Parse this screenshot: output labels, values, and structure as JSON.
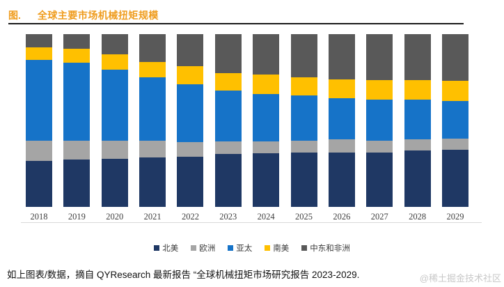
{
  "figure": {
    "label": "图.",
    "title": "全球主要市场机械扭矩规模",
    "title_color": "#EF9C1E"
  },
  "chart_data": {
    "type": "bar",
    "stacked": true,
    "percent": true,
    "title": "全球主要市场机械扭矩规模",
    "xlabel": "",
    "ylabel": "",
    "ylim": [
      0,
      100
    ],
    "grid": false,
    "legend_position": "bottom",
    "categories": [
      "2018",
      "2019",
      "2020",
      "2021",
      "2022",
      "2023",
      "2024",
      "2025",
      "2026",
      "2027",
      "2028",
      "2029"
    ],
    "series": [
      {
        "name": "北美",
        "color": "#1F3864",
        "values": [
          26.5,
          27.5,
          28.0,
          28.5,
          29.0,
          30.5,
          31.0,
          31.5,
          31.5,
          31.5,
          32.5,
          33.0
        ]
      },
      {
        "name": "欧洲",
        "color": "#A5A5A5",
        "values": [
          12.0,
          11.0,
          10.5,
          10.0,
          8.5,
          7.5,
          7.0,
          7.0,
          7.5,
          7.0,
          6.5,
          6.5
        ]
      },
      {
        "name": "亚太",
        "color": "#1673C8",
        "values": [
          46.5,
          45.0,
          41.0,
          36.5,
          33.5,
          29.5,
          27.5,
          26.0,
          24.0,
          23.5,
          23.0,
          22.0
        ]
      },
      {
        "name": "南美",
        "color": "#FFC000",
        "values": [
          7.5,
          8.0,
          9.0,
          9.0,
          10.5,
          10.0,
          11.0,
          10.5,
          11.0,
          11.5,
          11.5,
          11.5
        ]
      },
      {
        "name": "中东和非洲",
        "color": "#595959",
        "values": [
          7.5,
          8.5,
          11.5,
          16.0,
          18.5,
          22.5,
          23.5,
          25.0,
          26.0,
          26.5,
          26.5,
          27.0
        ]
      }
    ]
  },
  "footer": {
    "source_text": "如上图表/数据，摘自 QYResearch 最新报告 “全球机械扭矩市场研究报告 2023-2029.",
    "watermark": "@稀土掘金技术社区"
  }
}
